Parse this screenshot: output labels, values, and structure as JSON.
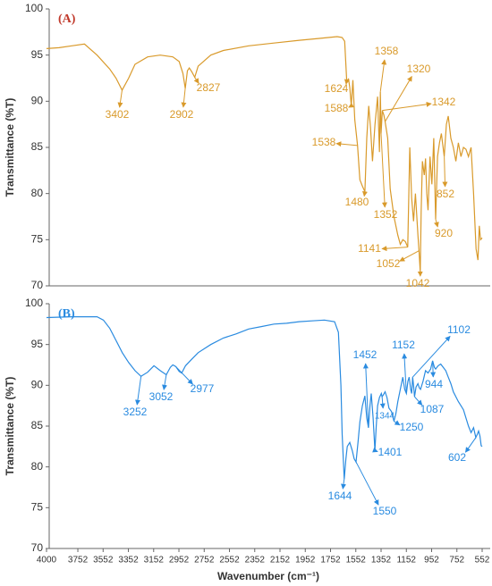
{
  "chart_data": [
    {
      "type": "line",
      "panel_label": "(A)",
      "ylabel": "Transmittance (%T)",
      "xlim": [
        4000,
        552
      ],
      "ylim": [
        70,
        100
      ],
      "yticks": [
        70,
        75,
        80,
        85,
        90,
        95,
        100
      ],
      "series": [
        {
          "color": "#d99a2b",
          "x": [
            4000,
            3900,
            3800,
            3700,
            3600,
            3500,
            3450,
            3402,
            3350,
            3300,
            3200,
            3100,
            3000,
            2950,
            2920,
            2902,
            2885,
            2870,
            2850,
            2827,
            2800,
            2700,
            2600,
            2400,
            2200,
            2000,
            1850,
            1700,
            1660,
            1640,
            1624,
            1610,
            1600,
            1588,
            1575,
            1560,
            1538,
            1520,
            1500,
            1480,
            1465,
            1450,
            1435,
            1420,
            1400,
            1380,
            1365,
            1358,
            1352,
            1342,
            1330,
            1320,
            1300,
            1280,
            1250,
            1220,
            1200,
            1180,
            1160,
            1141,
            1125,
            1110,
            1095,
            1080,
            1060,
            1052,
            1042,
            1035,
            1025,
            1010,
            1000,
            990,
            980,
            965,
            950,
            935,
            920,
            905,
            890,
            875,
            852,
            835,
            820,
            800,
            780,
            760,
            740,
            720,
            700,
            680,
            660,
            640,
            620,
            600,
            585,
            575,
            565,
            552
          ],
          "values": [
            95.7,
            95.8,
            96,
            96.2,
            95,
            93.5,
            92.5,
            91.2,
            92.5,
            94,
            94.8,
            95,
            94.8,
            94.3,
            93,
            91.4,
            93.3,
            93.6,
            93.2,
            92.6,
            93.8,
            95,
            95.5,
            96,
            96.3,
            96.6,
            96.8,
            97,
            96.9,
            96.5,
            92.2,
            92.4,
            91.5,
            89.5,
            92.3,
            88,
            85.2,
            81.5,
            80.8,
            80.2,
            86,
            89.5,
            87,
            83.5,
            87.5,
            90.5,
            84.5,
            91,
            86.5,
            89,
            88.5,
            87.8,
            86,
            80.5,
            77.5,
            75.5,
            74.5,
            75,
            74.8,
            74.2,
            85,
            79.5,
            77,
            80,
            75.5,
            73.8,
            71.5,
            78,
            83.5,
            82,
            83.8,
            80,
            78.2,
            84,
            81,
            86,
            77.2,
            84,
            85.5,
            86.5,
            84,
            87.5,
            88.4,
            86,
            85,
            83.5,
            85.5,
            84,
            85,
            84.8,
            84,
            85,
            80,
            74,
            72.8,
            76.5,
            75,
            75.2
          ]
        }
      ],
      "annotations": [
        "3402",
        "2902",
        "2827",
        "1624",
        "1588",
        "1538",
        "1480",
        "1358",
        "1320",
        "1342",
        "1352",
        "852",
        "1141",
        "1052",
        "1042",
        "920"
      ]
    },
    {
      "type": "line",
      "panel_label": "(B)",
      "ylabel": "Transmittance (%T)",
      "xlabel": "Wavenumber (cm⁻¹)",
      "xlim": [
        4000,
        552
      ],
      "ylim": [
        70,
        100
      ],
      "yticks": [
        70,
        75,
        80,
        85,
        90,
        95,
        100
      ],
      "xticks": [
        4000,
        3752,
        3552,
        3352,
        3152,
        2952,
        2752,
        2552,
        2352,
        2152,
        1952,
        1752,
        1552,
        1352,
        1152,
        952,
        752,
        552
      ],
      "series": [
        {
          "color": "#2a8be0",
          "x": [
            4000,
            3800,
            3600,
            3550,
            3500,
            3450,
            3400,
            3350,
            3300,
            3252,
            3200,
            3150,
            3100,
            3052,
            3020,
            3000,
            2977,
            2950,
            2930,
            2900,
            2850,
            2800,
            2700,
            2600,
            2500,
            2400,
            2300,
            2200,
            2100,
            2000,
            1900,
            1800,
            1720,
            1690,
            1670,
            1660,
            1644,
            1630,
            1620,
            1600,
            1580,
            1565,
            1550,
            1535,
            1520,
            1500,
            1480,
            1465,
            1452,
            1440,
            1430,
            1415,
            1401,
            1390,
            1380,
            1365,
            1350,
            1344,
            1335,
            1320,
            1305,
            1290,
            1270,
            1250,
            1235,
            1220,
            1200,
            1180,
            1165,
            1152,
            1140,
            1130,
            1118,
            1110,
            1102,
            1095,
            1087,
            1075,
            1060,
            1050,
            1040,
            1020,
            1000,
            980,
            960,
            944,
            930,
            920,
            900,
            880,
            860,
            840,
            820,
            800,
            780,
            760,
            740,
            720,
            700,
            680,
            660,
            640,
            620,
            602,
            590,
            580,
            570,
            560,
            552
          ],
          "values": [
            98.3,
            98.4,
            98.4,
            98,
            97,
            95.5,
            94,
            92.8,
            91.8,
            91.1,
            91.6,
            92.4,
            91.8,
            91.3,
            92.2,
            92.5,
            92.3,
            91.7,
            91.5,
            92.4,
            93.2,
            94,
            95,
            95.8,
            96.3,
            96.9,
            97.2,
            97.5,
            97.6,
            97.8,
            97.9,
            98,
            97.8,
            96.5,
            90,
            84,
            78.5,
            81,
            82.5,
            83,
            82,
            81,
            80.6,
            83,
            85.5,
            87.5,
            88.7,
            86,
            84.8,
            87.5,
            89,
            86,
            82,
            85,
            87.5,
            88.5,
            89,
            88.6,
            88.8,
            89.2,
            88.5,
            87.2,
            86.8,
            85.6,
            86.5,
            88,
            89.5,
            91,
            89.5,
            89,
            90.5,
            91,
            89.5,
            89,
            91,
            90,
            88.6,
            89.8,
            90.2,
            89.7,
            89.5,
            90.5,
            91.8,
            91.5,
            92,
            93,
            92.2,
            92,
            92.4,
            92.6,
            92.2,
            91.8,
            91,
            90.2,
            89.2,
            88.6,
            88,
            87.5,
            87,
            86,
            85,
            84.2,
            84.8,
            83.6,
            84,
            84.4,
            83.8,
            82.6,
            82.5
          ]
        }
      ],
      "annotations": [
        "3252",
        "3052",
        "2977",
        "1644",
        "1550",
        "1452",
        "1401",
        "1344",
        "1250",
        "1152",
        "1087",
        "1102",
        "944",
        "602"
      ]
    }
  ]
}
